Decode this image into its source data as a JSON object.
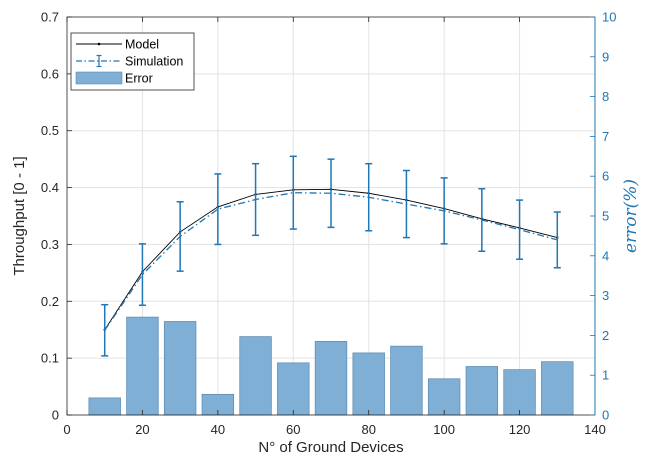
{
  "chart_data": {
    "type": "line",
    "xlabel": "N° of Ground Devices",
    "ylabel": "Throughput [0 - 1]",
    "y2label": "error(%)",
    "xlim": [
      0,
      140
    ],
    "ylim": [
      0,
      0.7
    ],
    "y2lim": [
      0,
      10
    ],
    "xticks": [
      0,
      20,
      40,
      60,
      80,
      100,
      120,
      140
    ],
    "yticks": [
      0,
      0.1,
      0.2,
      0.3,
      0.4,
      0.5,
      0.6,
      0.7
    ],
    "y2ticks": [
      0,
      1,
      2,
      3,
      4,
      5,
      6,
      7,
      8,
      9,
      10
    ],
    "xtick_labels": [
      "0",
      "20",
      "40",
      "60",
      "80",
      "100",
      "120",
      "140"
    ],
    "ytick_labels": [
      "0",
      "0.1",
      "0.2",
      "0.3",
      "0.4",
      "0.5",
      "0.6",
      "0.7"
    ],
    "y2tick_labels": [
      "0",
      "1",
      "2",
      "3",
      "4",
      "5",
      "6",
      "7",
      "8",
      "9",
      "10"
    ],
    "grid": true,
    "legend_position": "top-left",
    "x": [
      10,
      20,
      30,
      40,
      50,
      60,
      70,
      80,
      90,
      100,
      110,
      120,
      130
    ],
    "series": [
      {
        "name": "Model",
        "axis": "left",
        "style": "solid-line",
        "color": "#000000",
        "values": [
          0.15,
          0.252,
          0.322,
          0.366,
          0.388,
          0.396,
          0.397,
          0.39,
          0.378,
          0.363,
          0.345,
          0.329,
          0.312
        ]
      },
      {
        "name": "Simulation",
        "axis": "left",
        "style": "dash-dot-errorbar",
        "color": "#1f77b4",
        "values": [
          0.149,
          0.247,
          0.314,
          0.362,
          0.379,
          0.391,
          0.39,
          0.383,
          0.371,
          0.359,
          0.343,
          0.326,
          0.308
        ],
        "error": [
          0.045,
          0.054,
          0.061,
          0.062,
          0.063,
          0.064,
          0.06,
          0.059,
          0.059,
          0.058,
          0.055,
          0.052,
          0.049
        ]
      },
      {
        "name": "Error",
        "axis": "right",
        "style": "bar",
        "color": "#7fafd4",
        "values": [
          0.43,
          2.46,
          2.35,
          0.52,
          1.97,
          1.31,
          1.85,
          1.56,
          1.73,
          0.91,
          1.22,
          1.14,
          1.34
        ]
      }
    ]
  }
}
